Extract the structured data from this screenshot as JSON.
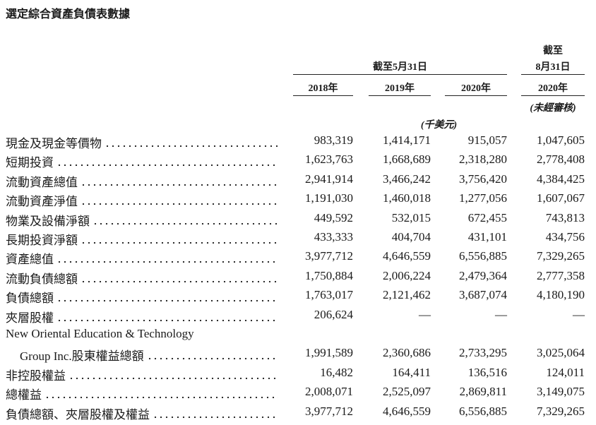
{
  "title": "選定綜合資產負債表數據",
  "header": {
    "group_label": "截至5月31日",
    "last_label_line1": "截至",
    "last_label_line2": "8月31日",
    "years": [
      "2018年",
      "2019年",
      "2020年",
      "2020年"
    ],
    "unaudited": "(未經審核)",
    "unit": "(千美元)"
  },
  "table": {
    "rows": [
      {
        "label": "現金及現金等價物",
        "values": [
          "983,319",
          "1,414,171",
          "915,057",
          "1,047,605"
        ]
      },
      {
        "label": "短期投資",
        "values": [
          "1,623,763",
          "1,668,689",
          "2,318,280",
          "2,778,408"
        ]
      },
      {
        "label": "流動資產總值",
        "values": [
          "2,941,914",
          "3,466,242",
          "3,756,420",
          "4,384,425"
        ]
      },
      {
        "label": "流動資產淨值",
        "values": [
          "1,191,030",
          "1,460,018",
          "1,277,056",
          "1,607,067"
        ]
      },
      {
        "label": "物業及設備淨額",
        "values": [
          "449,592",
          "532,015",
          "672,455",
          "743,813"
        ]
      },
      {
        "label": "長期投資淨額",
        "values": [
          "433,333",
          "404,704",
          "431,101",
          "434,756"
        ]
      },
      {
        "label": "資產總值",
        "values": [
          "3,977,712",
          "4,646,559",
          "6,556,885",
          "7,329,265"
        ]
      },
      {
        "label": "流動負債總額",
        "values": [
          "1,750,884",
          "2,006,224",
          "2,479,364",
          "2,777,358"
        ]
      },
      {
        "label": "負債總額",
        "values": [
          "1,763,017",
          "2,121,462",
          "3,687,074",
          "4,180,190"
        ]
      },
      {
        "label": "夾層股權",
        "values": [
          "206,624",
          "—",
          "—",
          "—"
        ]
      },
      {
        "label_first_line": "New Oriental Education & Technology",
        "label": "Group Inc.股東權益總額",
        "values": [
          "1,991,589",
          "2,360,686",
          "2,733,295",
          "3,025,064"
        ]
      },
      {
        "label": "非控股權益",
        "values": [
          "16,482",
          "164,411",
          "136,516",
          "124,011"
        ]
      },
      {
        "label": "總權益",
        "values": [
          "2,008,071",
          "2,525,097",
          "2,869,811",
          "3,149,075"
        ]
      },
      {
        "label": "負債總額、夾層股權及權益",
        "values": [
          "3,977,712",
          "4,646,559",
          "6,556,885",
          "7,329,265"
        ]
      }
    ]
  }
}
